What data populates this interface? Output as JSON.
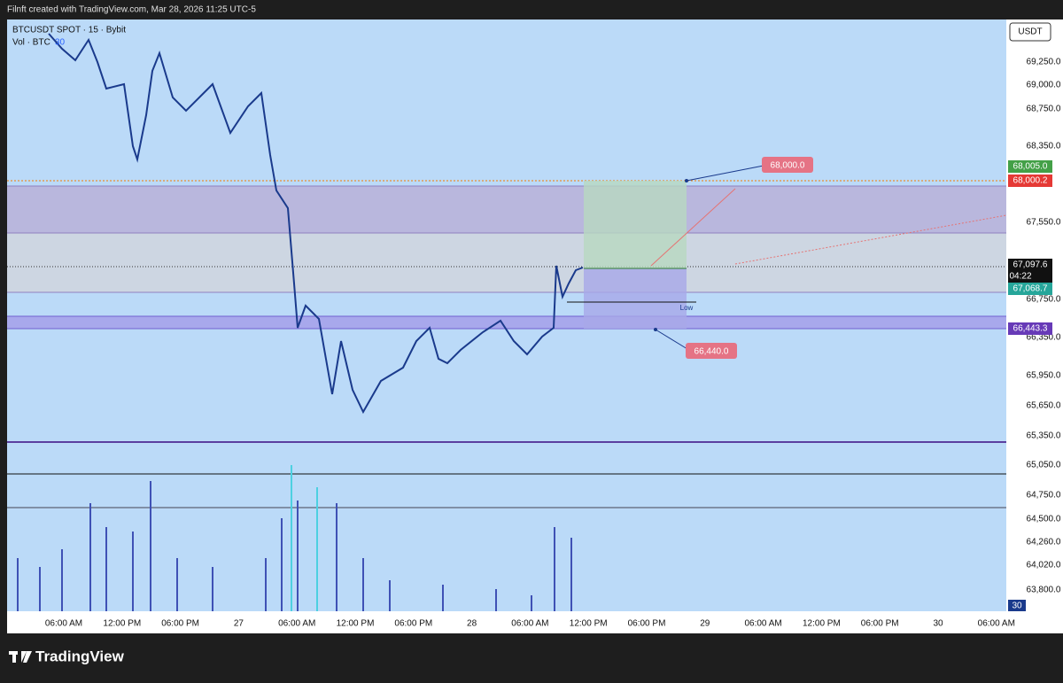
{
  "header": {
    "title": "Filnft created with TradingView.com, Mar 28, 2026 11:25 UTC-5"
  },
  "legend": {
    "symbol": "BTCUSDT SPOT · 15 · Bybit",
    "volume": "Vol · BTC",
    "volume_value": "30"
  },
  "price_axis": {
    "currency": "USDT",
    "labels": [
      "69,250.0",
      "69,000.0",
      "68,750.0",
      "68,350.0",
      "67,550.0",
      "66,750.0",
      "66,350.0",
      "65,950.0",
      "65,650.0",
      "65,350.0",
      "65,050.0",
      "64,750.0",
      "64,500.0",
      "64,260.0",
      "64,020.0",
      "63,800.0"
    ]
  },
  "badges": {
    "target": "68,005.0",
    "line": "68,000.2",
    "last_price": "67,097.6",
    "countdown": "04:22",
    "entry": "67,068.7",
    "stop": "66,443.3",
    "volume": "30"
  },
  "time_axis": [
    "06:00 AM",
    "12:00 PM",
    "06:00 PM",
    "27",
    "06:00 AM",
    "12:00 PM",
    "06:00 PM",
    "28",
    "06:00 AM",
    "12:00 PM",
    "06:00 PM",
    "29",
    "06:00 AM",
    "12:00 PM",
    "06:00 PM",
    "30",
    "06:00 AM"
  ],
  "annotations": {
    "take_profit": "68,000.0",
    "stop_loss": "66,440.0",
    "low": "Low"
  },
  "footer": {
    "brand": "TradingView"
  }
}
